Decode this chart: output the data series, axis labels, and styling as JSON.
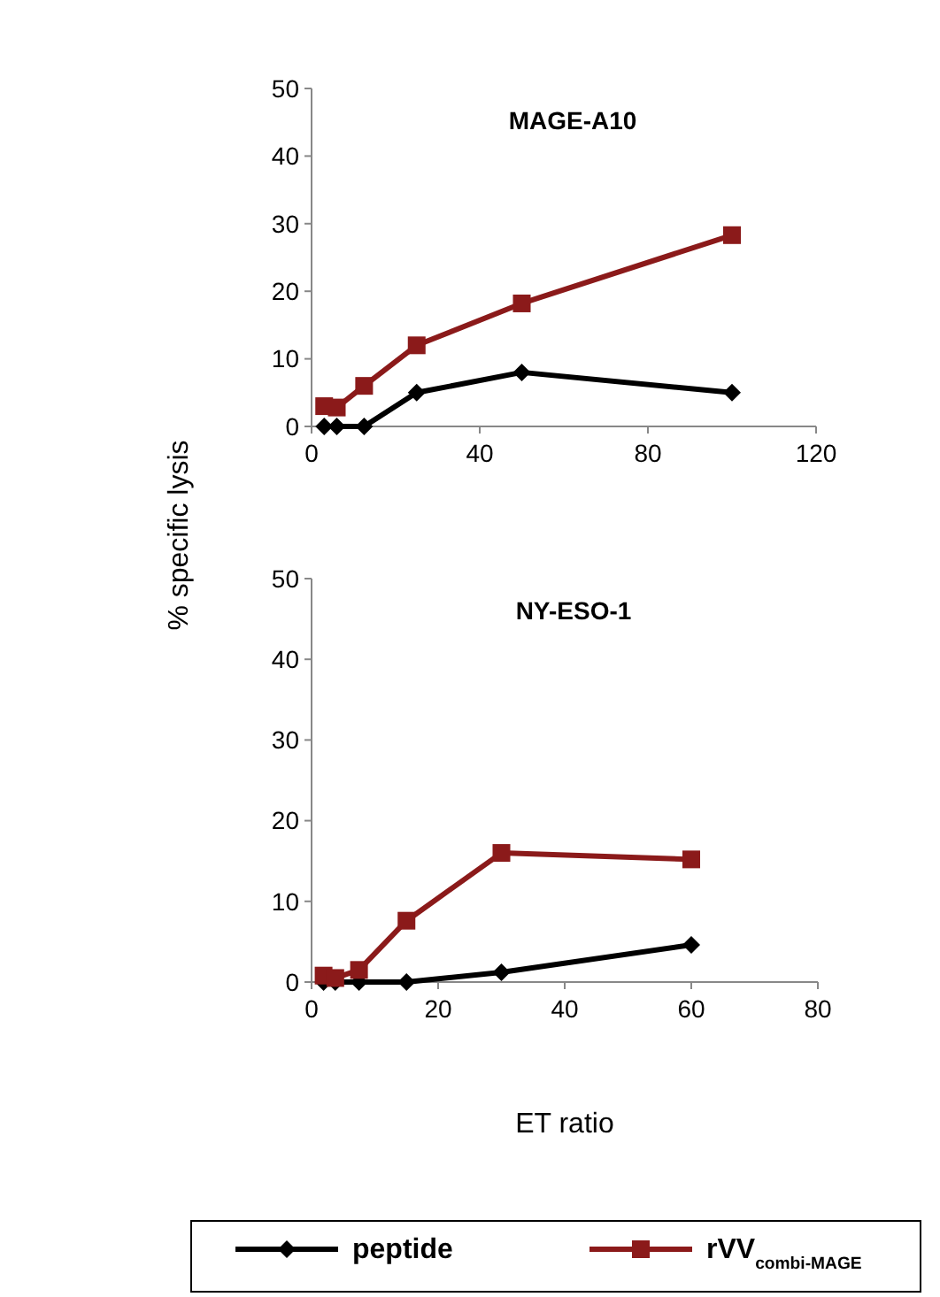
{
  "chart_data": [
    {
      "type": "line",
      "title": "MAGE-A10",
      "ylabel": "% specific lysis",
      "xlim": [
        0,
        120
      ],
      "xticks": [
        0,
        40,
        80,
        120
      ],
      "ylim": [
        0,
        50
      ],
      "yticks": [
        0,
        10,
        20,
        30,
        40,
        50
      ],
      "grid": false,
      "series": [
        {
          "color": "#000000",
          "marker": "diamond",
          "x": [
            3,
            6,
            12.5,
            25,
            50,
            100
          ],
          "values": [
            0,
            0,
            0,
            5,
            8,
            5
          ]
        },
        {
          "color": "#8b1a1a",
          "marker": "square",
          "x": [
            3,
            6,
            12.5,
            25,
            50,
            100
          ],
          "values": [
            3,
            2.8,
            6,
            12,
            18.2,
            28.3
          ]
        }
      ]
    },
    {
      "type": "line",
      "title": "NY-ESO-1",
      "xlabel": "ET ratio",
      "xlim": [
        0,
        80
      ],
      "xticks": [
        0,
        20,
        40,
        60,
        80
      ],
      "ylim": [
        0,
        50
      ],
      "yticks": [
        0,
        10,
        20,
        30,
        40,
        50
      ],
      "grid": false,
      "legend": "bottom",
      "series": [
        {
          "name": "peptide",
          "color": "#000000",
          "marker": "diamond",
          "x": [
            1.9,
            3.75,
            7.5,
            15,
            30,
            60
          ],
          "values": [
            0,
            0,
            0,
            0,
            1.2,
            4.6
          ]
        },
        {
          "name": "rVV$_{combi-MAGE}$",
          "color": "#8b1a1a",
          "marker": "square",
          "x": [
            1.9,
            3.75,
            7.5,
            15,
            30,
            60
          ],
          "values": [
            0.8,
            0.5,
            1.5,
            7.6,
            16,
            15.2
          ]
        }
      ]
    }
  ]
}
